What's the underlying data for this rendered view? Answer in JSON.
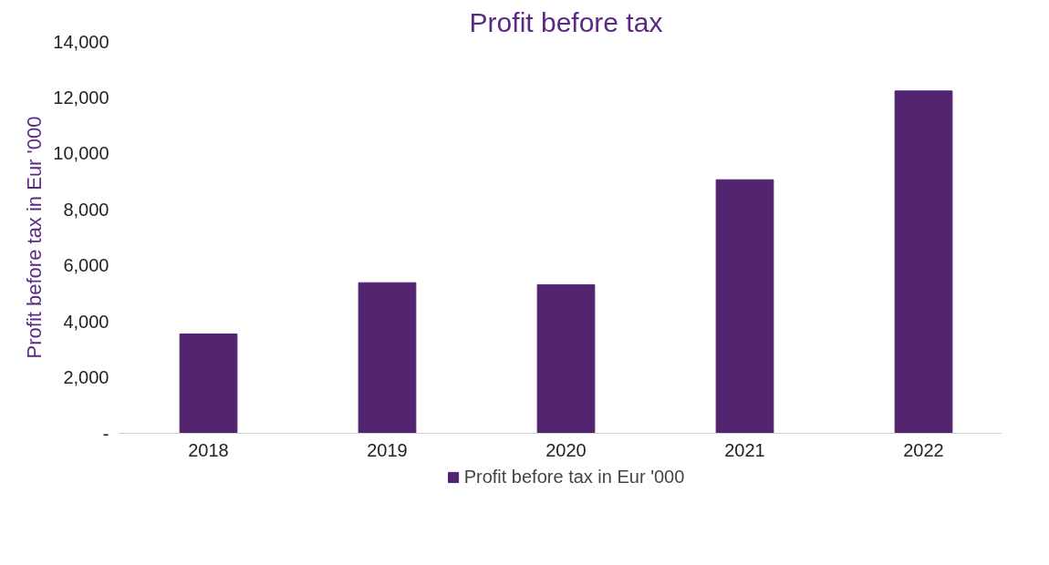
{
  "chart_data": {
    "type": "bar",
    "title": "Profit before tax",
    "ylabel": "Profit before tax in Eur '000",
    "categories": [
      "2018",
      "2019",
      "2020",
      "2021",
      "2022"
    ],
    "series": [
      {
        "name": "Profit before tax in Eur '000",
        "color": "#52236f",
        "values": [
          3550,
          5380,
          5310,
          9060,
          12230
        ]
      }
    ],
    "ylim": [
      0,
      14000
    ],
    "yticks": [
      {
        "value": 0,
        "label": "-"
      },
      {
        "value": 2000,
        "label": "2,000"
      },
      {
        "value": 4000,
        "label": "4,000"
      },
      {
        "value": 6000,
        "label": "6,000"
      },
      {
        "value": 8000,
        "label": "8,000"
      },
      {
        "value": 10000,
        "label": "10,000"
      },
      {
        "value": 12000,
        "label": "12,000"
      },
      {
        "value": 14000,
        "label": "14,000"
      }
    ],
    "grid": false,
    "legend": "bottom"
  }
}
